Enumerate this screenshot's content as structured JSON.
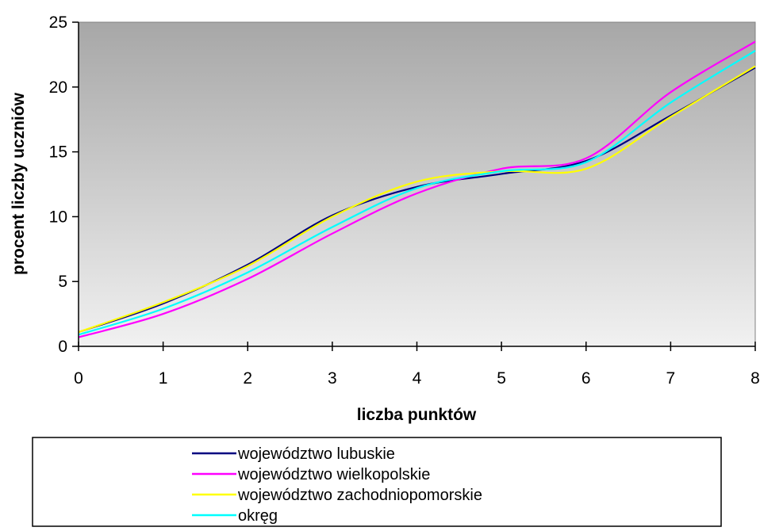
{
  "chart_data": {
    "type": "line",
    "xlabel": "liczba punktów",
    "ylabel": "procent liczby uczniów",
    "xlim": [
      0,
      8
    ],
    "ylim": [
      0,
      25
    ],
    "x_ticks": [
      0,
      1,
      2,
      3,
      4,
      5,
      6,
      7,
      8
    ],
    "y_ticks": [
      0,
      5,
      10,
      15,
      20,
      25
    ],
    "grid": false,
    "legend_position": "bottom",
    "x": [
      0,
      1,
      2,
      3,
      4,
      5,
      6,
      7,
      8
    ],
    "series": [
      {
        "name": "województwo lubuskie",
        "color": "#000080",
        "values": [
          1.1,
          3.3,
          6.3,
          10.1,
          12.3,
          13.3,
          14.3,
          17.8,
          21.5
        ]
      },
      {
        "name": "województwo wielkopolskie",
        "color": "#ff00ff",
        "values": [
          0.7,
          2.5,
          5.2,
          8.7,
          11.8,
          13.7,
          14.5,
          19.6,
          23.5
        ]
      },
      {
        "name": "województwo zachodniopomorskie",
        "color": "#ffff00",
        "values": [
          1.1,
          3.4,
          6.2,
          10.0,
          12.7,
          13.5,
          13.7,
          17.7,
          21.6
        ]
      },
      {
        "name": "okręg",
        "color": "#00ffff",
        "values": [
          0.9,
          2.9,
          5.7,
          9.2,
          12.2,
          13.5,
          14.2,
          18.8,
          22.8
        ]
      }
    ]
  }
}
